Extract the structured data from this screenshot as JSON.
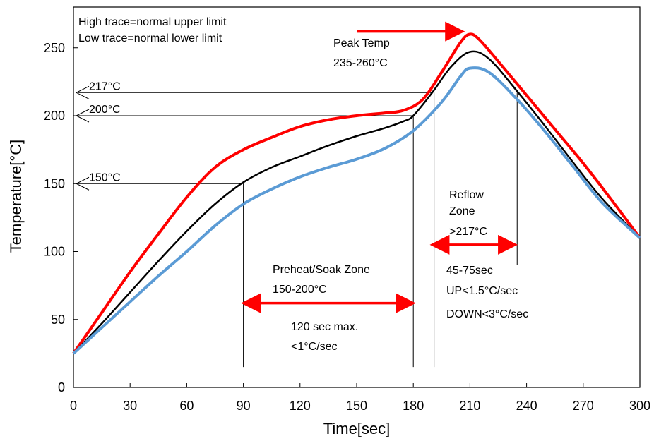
{
  "chart_data": {
    "type": "line",
    "xlabel": "Time[sec]",
    "ylabel": "Temperature[°C]",
    "xlim": [
      0,
      300
    ],
    "ylim": [
      0,
      280
    ],
    "xticks": [
      0,
      30,
      60,
      90,
      120,
      150,
      180,
      210,
      240,
      270,
      300
    ],
    "yticks": [
      0,
      50,
      100,
      150,
      200,
      250
    ],
    "grid": false,
    "legend_note": [
      "High trace=normal upper limit",
      "Low trace=normal lower limit"
    ],
    "series": [
      {
        "color": "#ff0000",
        "points": [
          [
            0,
            25
          ],
          [
            15,
            55
          ],
          [
            30,
            85
          ],
          [
            45,
            113
          ],
          [
            60,
            140
          ],
          [
            75,
            162
          ],
          [
            90,
            175
          ],
          [
            105,
            184
          ],
          [
            120,
            192
          ],
          [
            135,
            197
          ],
          [
            150,
            200
          ],
          [
            165,
            202
          ],
          [
            175,
            204
          ],
          [
            185,
            212
          ],
          [
            195,
            232
          ],
          [
            205,
            254
          ],
          [
            210,
            260
          ],
          [
            215,
            256
          ],
          [
            225,
            240
          ],
          [
            240,
            215
          ],
          [
            255,
            190
          ],
          [
            270,
            165
          ],
          [
            285,
            138
          ],
          [
            300,
            110
          ]
        ]
      },
      {
        "color": "#000000",
        "points": [
          [
            0,
            25
          ],
          [
            15,
            47
          ],
          [
            30,
            70
          ],
          [
            45,
            93
          ],
          [
            60,
            115
          ],
          [
            75,
            135
          ],
          [
            90,
            151
          ],
          [
            105,
            162
          ],
          [
            120,
            170
          ],
          [
            135,
            178
          ],
          [
            150,
            185
          ],
          [
            165,
            191
          ],
          [
            175,
            196
          ],
          [
            180,
            200
          ],
          [
            190,
            217
          ],
          [
            200,
            236
          ],
          [
            210,
            247
          ],
          [
            220,
            242
          ],
          [
            235,
            218
          ],
          [
            250,
            192
          ],
          [
            265,
            165
          ],
          [
            280,
            139
          ],
          [
            300,
            110
          ]
        ]
      },
      {
        "color": "#5b9bd5",
        "points": [
          [
            0,
            25
          ],
          [
            15,
            44
          ],
          [
            30,
            63
          ],
          [
            45,
            82
          ],
          [
            60,
            100
          ],
          [
            75,
            119
          ],
          [
            90,
            135
          ],
          [
            105,
            146
          ],
          [
            120,
            155
          ],
          [
            135,
            162
          ],
          [
            150,
            168
          ],
          [
            165,
            176
          ],
          [
            180,
            189
          ],
          [
            195,
            210
          ],
          [
            205,
            229
          ],
          [
            210,
            235
          ],
          [
            220,
            232
          ],
          [
            235,
            212
          ],
          [
            250,
            188
          ],
          [
            265,
            162
          ],
          [
            280,
            136
          ],
          [
            300,
            110
          ]
        ]
      }
    ],
    "reference_lines": [
      {
        "label": "217°C",
        "y": 217,
        "x_end": 190
      },
      {
        "label": "200°C",
        "y": 200,
        "x_end": 180
      },
      {
        "label": "150°C",
        "y": 150,
        "x_end": 90
      }
    ],
    "zone_lines": [
      {
        "x": 90,
        "y_bottom": 15,
        "y_top": 150
      },
      {
        "x": 180,
        "y_bottom": 15,
        "y_top": 200
      },
      {
        "x": 191,
        "y_bottom": 15,
        "y_top": 217
      },
      {
        "x": 235,
        "y_bottom": 90,
        "y_top": 217
      }
    ],
    "annotations": {
      "peak_title": "Peak Temp",
      "peak_range": "235-260°C",
      "preheat_title": "Preheat/Soak Zone",
      "preheat_range": "150-200°C",
      "preheat_time": "120 sec max.",
      "preheat_rate": "<1°C/sec",
      "reflow_line1": "Reflow",
      "reflow_line2": "Zone",
      "reflow_temp": ">217°C",
      "reflow_time": "45-75sec",
      "reflow_up": "UP<1.5°C/sec",
      "reflow_down": "DOWN<3°C/sec"
    },
    "arrows": [
      {
        "from": [
          90,
          62
        ],
        "to": [
          180,
          62
        ],
        "double": true
      },
      {
        "from": [
          190,
          105
        ],
        "to": [
          234,
          105
        ],
        "double": true
      },
      {
        "from": [
          150,
          262
        ],
        "to": [
          206,
          262
        ],
        "double": false
      }
    ]
  }
}
